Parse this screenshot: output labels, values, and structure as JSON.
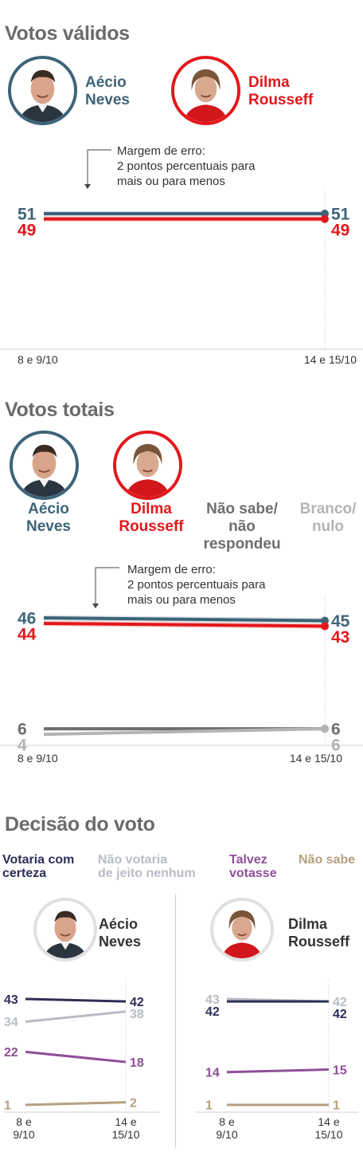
{
  "colors": {
    "aecio": "#3d6478",
    "dilma": "#e3171c",
    "nao_sabe_respondeu": "#6e6e6e",
    "branco_nulo": "#b4b4b4",
    "votaria_com_certeza": "#2e2e58",
    "nao_votaria": "#b8bcc4",
    "talvez_votasse": "#8e4f97",
    "nao_sabe": "#b5a07f"
  },
  "validos": {
    "title": "Votos válidos",
    "aecio_name": [
      "Aécio",
      "Neves"
    ],
    "dilma_name": [
      "Dilma",
      "Rousseff"
    ],
    "margin_note": [
      "Margem de erro:",
      "2 pontos percentuais para",
      "mais ou para menos"
    ]
  },
  "totais": {
    "title": "Votos totais",
    "aecio_name": [
      "Aécio",
      "Neves"
    ],
    "dilma_name": [
      "Dilma",
      "Rousseff"
    ],
    "nao_sabe_name": [
      "Não sabe/",
      "não",
      "respondeu"
    ],
    "branco_name": [
      "Branco/",
      "nulo"
    ],
    "margin_note": [
      "Margem de erro:",
      "2 pontos percentuais para",
      "mais ou para menos"
    ]
  },
  "decisao": {
    "title": "Decisão do voto",
    "legend": {
      "certeza": [
        "Votaria com",
        "certeza"
      ],
      "nao_votaria": [
        "Não votaria",
        "de jeito nenhum"
      ],
      "talvez": [
        "Talvez",
        "votasse"
      ],
      "nao_sabe": "Não sabe"
    },
    "aecio_name": [
      "Aécio",
      "Neves"
    ],
    "dilma_name": [
      "Dilma",
      "Rousseff"
    ]
  },
  "chart_data": [
    {
      "type": "line",
      "title": "Votos válidos",
      "x": [
        "8 e 9/10",
        "14 e 15/10"
      ],
      "series": [
        {
          "name": "Aécio Neves",
          "values": [
            51,
            51
          ]
        },
        {
          "name": "Dilma Rousseff",
          "values": [
            49,
            49
          ]
        }
      ],
      "margin_of_error": 2
    },
    {
      "type": "line",
      "title": "Votos totais",
      "x": [
        "8 e 9/10",
        "14 e 15/10"
      ],
      "series": [
        {
          "name": "Aécio Neves",
          "values": [
            46,
            45
          ]
        },
        {
          "name": "Dilma Rousseff",
          "values": [
            44,
            43
          ]
        },
        {
          "name": "Não sabe/não respondeu",
          "values": [
            6,
            6
          ]
        },
        {
          "name": "Branco/nulo",
          "values": [
            4,
            6
          ]
        }
      ],
      "margin_of_error": 2
    },
    {
      "type": "line",
      "title": "Decisão do voto",
      "subtitle": "Aécio Neves",
      "x": [
        "8 e 9/10",
        "14 e 15/10"
      ],
      "series": [
        {
          "name": "Votaria com certeza",
          "values": [
            43,
            42
          ]
        },
        {
          "name": "Não votaria de jeito nenhum",
          "values": [
            34,
            38
          ]
        },
        {
          "name": "Talvez votasse",
          "values": [
            22,
            18
          ]
        },
        {
          "name": "Não sabe",
          "values": [
            1,
            2
          ]
        }
      ]
    },
    {
      "type": "line",
      "title": "Decisão do voto",
      "subtitle": "Dilma Rousseff",
      "x": [
        "8 e 9/10",
        "14 e 15/10"
      ],
      "series": [
        {
          "name": "Não votaria de jeito nenhum",
          "values": [
            43,
            42
          ]
        },
        {
          "name": "Votaria com certeza",
          "values": [
            42,
            42
          ]
        },
        {
          "name": "Talvez votasse",
          "values": [
            14,
            15
          ]
        },
        {
          "name": "Não sabe",
          "values": [
            1,
            1
          ]
        }
      ]
    }
  ]
}
